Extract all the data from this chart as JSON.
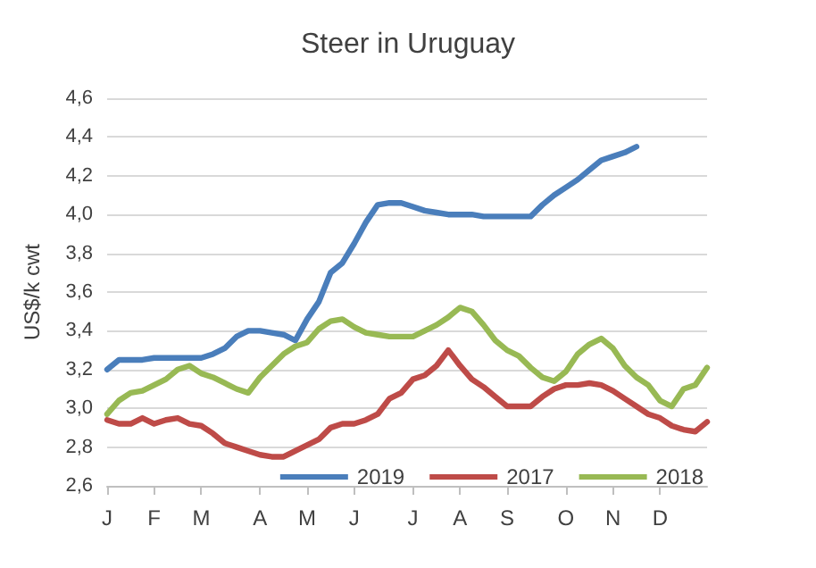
{
  "chart_data": {
    "type": "line",
    "title": "Steer in Uruguay",
    "ylabel": "US$/k cwt",
    "categories": [
      "J",
      null,
      null,
      null,
      "F",
      null,
      null,
      null,
      "M",
      null,
      null,
      null,
      null,
      "A",
      null,
      null,
      null,
      "M",
      null,
      null,
      null,
      "J",
      null,
      null,
      null,
      null,
      "J",
      null,
      null,
      null,
      "A",
      null,
      null,
      null,
      "S",
      null,
      null,
      null,
      null,
      "O",
      null,
      null,
      null,
      "N",
      null,
      null,
      null,
      "D",
      null,
      null,
      null,
      null
    ],
    "series": [
      {
        "name": "2019",
        "color": "#4a7ebb",
        "values": [
          3.2,
          3.25,
          3.25,
          3.25,
          3.26,
          3.26,
          3.26,
          3.26,
          3.26,
          3.28,
          3.31,
          3.37,
          3.4,
          3.4,
          3.39,
          3.38,
          3.35,
          3.46,
          3.55,
          3.7,
          3.75,
          3.85,
          3.96,
          4.05,
          4.06,
          4.06,
          4.04,
          4.02,
          4.01,
          4.0,
          4.0,
          4.0,
          3.99,
          3.99,
          3.99,
          3.99,
          3.99,
          4.05,
          4.1,
          4.14,
          4.18,
          4.23,
          4.28,
          4.3,
          4.32,
          4.35,
          null,
          null,
          null,
          null,
          null,
          null
        ]
      },
      {
        "name": "2017",
        "color": "#be4b48",
        "values": [
          2.94,
          2.92,
          2.92,
          2.95,
          2.92,
          2.94,
          2.95,
          2.92,
          2.91,
          2.87,
          2.82,
          2.8,
          2.78,
          2.76,
          2.75,
          2.75,
          2.78,
          2.81,
          2.84,
          2.9,
          2.92,
          2.92,
          2.94,
          2.97,
          3.05,
          3.08,
          3.15,
          3.17,
          3.22,
          3.3,
          3.22,
          3.15,
          3.11,
          3.06,
          3.01,
          3.01,
          3.01,
          3.06,
          3.1,
          3.12,
          3.12,
          3.13,
          3.12,
          3.09,
          3.05,
          3.01,
          2.97,
          2.95,
          2.91,
          2.89,
          2.88,
          2.93
        ]
      },
      {
        "name": "2018",
        "color": "#98b954",
        "values": [
          2.97,
          3.04,
          3.08,
          3.09,
          3.12,
          3.15,
          3.2,
          3.22,
          3.18,
          3.16,
          3.13,
          3.1,
          3.08,
          3.16,
          3.22,
          3.28,
          3.32,
          3.34,
          3.41,
          3.45,
          3.46,
          3.42,
          3.39,
          3.38,
          3.37,
          3.37,
          3.37,
          3.4,
          3.43,
          3.47,
          3.52,
          3.5,
          3.43,
          3.35,
          3.3,
          3.27,
          3.21,
          3.16,
          3.14,
          3.19,
          3.28,
          3.33,
          3.36,
          3.31,
          3.22,
          3.16,
          3.12,
          3.04,
          3.01,
          3.1,
          3.12,
          3.21
        ]
      }
    ],
    "ylim": [
      2.6,
      4.6
    ],
    "yticks": [
      {
        "value": 2.6,
        "label": "2,6"
      },
      {
        "value": 2.8,
        "label": "2,8"
      },
      {
        "value": 3.0,
        "label": "3,0"
      },
      {
        "value": 3.2,
        "label": "3,2"
      },
      {
        "value": 3.4,
        "label": "3,4"
      },
      {
        "value": 3.6,
        "label": "3,6"
      },
      {
        "value": 3.8,
        "label": "3,8"
      },
      {
        "value": 4.0,
        "label": "4,0"
      },
      {
        "value": 4.2,
        "label": "4,2"
      },
      {
        "value": 4.4,
        "label": "4,4"
      },
      {
        "value": 4.6,
        "label": "4,6"
      }
    ],
    "grid": "y",
    "legend": "bottom right",
    "marker": "none",
    "line_style": "solid"
  }
}
